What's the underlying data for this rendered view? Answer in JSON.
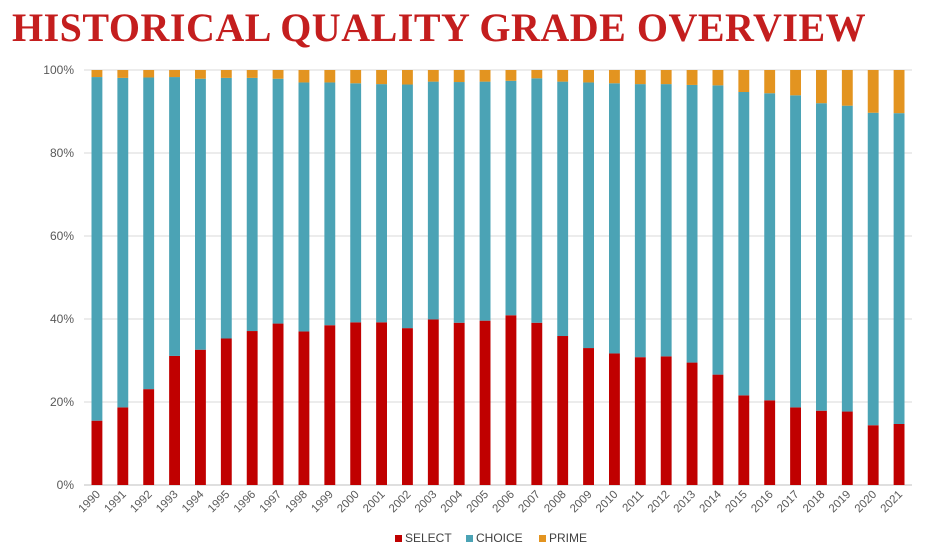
{
  "title": "HISTORICAL QUALITY GRADE OVERVIEW",
  "chart_data": {
    "type": "bar",
    "stacked": true,
    "percent": true,
    "categories": [
      "1990",
      "1991",
      "1992",
      "1993",
      "1994",
      "1995",
      "1996",
      "1997",
      "1998",
      "1999",
      "2000",
      "2001",
      "2002",
      "2003",
      "2004",
      "2005",
      "2006",
      "2007",
      "2008",
      "2009",
      "2010",
      "2011",
      "2012",
      "2013",
      "2014",
      "2015",
      "2016",
      "2017",
      "2018",
      "2019",
      "2020",
      "2021"
    ],
    "series": [
      {
        "name": "SELECT",
        "color": "#c00000",
        "values": [
          15.5,
          18.7,
          23.1,
          31.1,
          32.6,
          35.3,
          37.1,
          38.9,
          37.0,
          38.5,
          39.2,
          39.2,
          37.8,
          39.9,
          39.1,
          39.6,
          40.9,
          39.1,
          35.9,
          33.0,
          31.7,
          30.8,
          31.0,
          29.5,
          26.6,
          21.6,
          20.4,
          18.7,
          17.9,
          17.7,
          14.4,
          14.7
        ]
      },
      {
        "name": "CHOICE",
        "color": "#4ba3b5",
        "values": [
          82.8,
          79.4,
          75.1,
          67.2,
          65.3,
          62.8,
          61.0,
          59.0,
          60.0,
          58.5,
          57.6,
          57.4,
          58.7,
          57.3,
          58.0,
          57.6,
          56.5,
          58.9,
          61.3,
          64.0,
          65.1,
          65.8,
          65.6,
          66.9,
          69.7,
          73.1,
          74.0,
          75.2,
          74.1,
          73.7,
          75.3,
          74.9
        ]
      },
      {
        "name": "PRIME",
        "color": "#e39420",
        "values": [
          1.7,
          1.9,
          1.8,
          1.7,
          2.1,
          1.9,
          1.9,
          2.1,
          3.0,
          3.0,
          3.2,
          3.4,
          3.5,
          2.8,
          2.9,
          2.8,
          2.6,
          2.0,
          2.8,
          3.0,
          3.2,
          3.4,
          3.4,
          3.6,
          3.7,
          5.3,
          5.6,
          6.1,
          8.0,
          8.6,
          10.3,
          10.4
        ]
      }
    ],
    "y_ticks": [
      "0%",
      "20%",
      "40%",
      "60%",
      "80%",
      "100%"
    ],
    "ylim": [
      0,
      100
    ],
    "grid": true,
    "legend_position": "bottom"
  }
}
